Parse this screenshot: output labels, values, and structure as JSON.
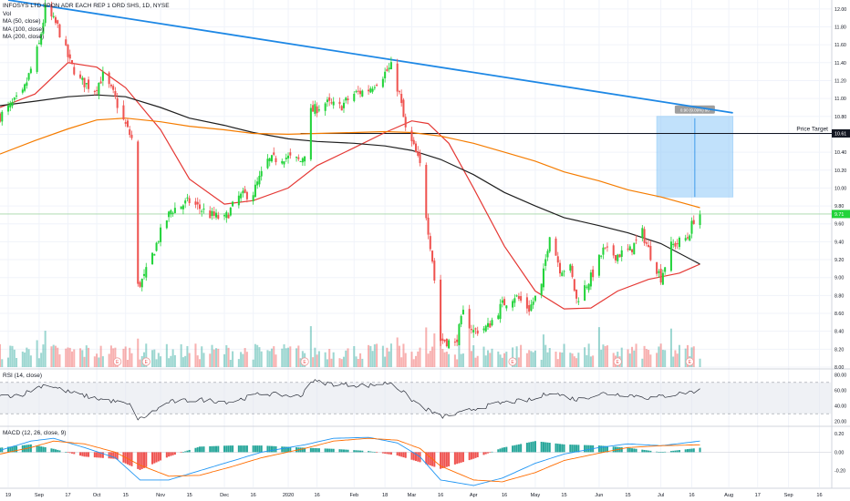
{
  "symbol_line": "INFOSYS LTD SPON ADR EACH REP 1 ORD SHS, 1D, NYSE",
  "legend_lines": [
    "Vol",
    "MA (50, close)",
    "MA (100, close)",
    "MA (200, close)"
  ],
  "rsi_label": "RSI (14, close)",
  "macd_label": "MACD (12, 26, close, 9)",
  "colors": {
    "up": "#26a69a",
    "up_bright": "#22d33a",
    "down": "#ef5350",
    "ma50": "#e53935",
    "ma100": "#1f1f1f",
    "ma200": "#f57c00",
    "trendline": "#1e88e5",
    "target_box": "#90caf9",
    "rsi_band": "#9598a1",
    "macd_line": "#2196f3",
    "signal_line": "#ff6d00",
    "hist_up": "#26a69a",
    "hist_down": "#ef5350"
  },
  "annotations": {
    "price_target_label": "Price Target",
    "price_target_value": "10.61",
    "current_price_tag": "9.71",
    "measure_label": "0.90 (9.09%) 90",
    "price_target_level": 10.61,
    "current_price_level": 9.71,
    "target_box": {
      "from_date": "2020-06-29",
      "to_date": "2020-08-05",
      "low": 9.9,
      "high": 10.8
    },
    "trendline": {
      "start": {
        "date": "2019-08-19",
        "price": 12.1
      },
      "end": {
        "date": "2020-08-05",
        "price": 10.84
      }
    },
    "earnings_markers_main": [
      "2019-10-11",
      "2019-10-25",
      "2020-01-10",
      "2020-04-20",
      "2020-06-10",
      "2020-07-15"
    ],
    "earnings_symbol": "E",
    "dividend_symbol": "D"
  },
  "chart_data": {
    "type": "candlestick",
    "axes": {
      "x_ticks": [
        "19",
        "Sep",
        "17",
        "Oct",
        "15",
        "Nov",
        "15",
        "Dec",
        "16",
        "2020",
        "16",
        "Feb",
        "18",
        "Mar",
        "16",
        "Apr",
        "16",
        "May",
        "15",
        "Jun",
        "15",
        "Jul",
        "16",
        "Aug",
        "17",
        "Sep",
        "16"
      ],
      "x_tick_dates": [
        "2019-08-19",
        "2019-09-03",
        "2019-09-17",
        "2019-10-01",
        "2019-10-15",
        "2019-11-01",
        "2019-11-15",
        "2019-12-02",
        "2019-12-16",
        "2020-01-02",
        "2020-01-16",
        "2020-02-03",
        "2020-02-18",
        "2020-03-02",
        "2020-03-16",
        "2020-04-01",
        "2020-04-16",
        "2020-05-01",
        "2020-05-15",
        "2020-06-01",
        "2020-06-15",
        "2020-07-01",
        "2020-07-16",
        "2020-08-03",
        "2020-08-17",
        "2020-09-01",
        "2020-09-16"
      ],
      "x_range": [
        "2019-08-15",
        "2020-09-22"
      ],
      "price_ticks": [
        "12.00",
        "11.80",
        "11.60",
        "11.40",
        "11.20",
        "11.00",
        "10.80",
        "10.60",
        "10.40",
        "10.20",
        "10.00",
        "9.80",
        "9.60",
        "9.40",
        "9.20",
        "9.00",
        "8.80",
        "8.60",
        "8.40",
        "8.20",
        "8.00"
      ],
      "price_range": [
        8.0,
        12.1
      ],
      "rsi_ticks": [
        "80.00",
        "60.00",
        "40.00",
        "20.00"
      ],
      "rsi_range": [
        15,
        85
      ],
      "rsi_band": [
        30,
        70
      ],
      "macd_ticks": [
        "0.20",
        "0.00",
        "-0.20"
      ],
      "macd_range": [
        -0.38,
        0.26
      ],
      "volume_max": 1.0
    },
    "price_anchors": [
      [
        "2019-08-15",
        10.8
      ],
      [
        "2019-08-26",
        11.05
      ],
      [
        "2019-09-03",
        11.6
      ],
      [
        "2019-09-06",
        12.0
      ],
      [
        "2019-09-12",
        11.8
      ],
      [
        "2019-09-18",
        11.4
      ],
      [
        "2019-09-23",
        11.2
      ],
      [
        "2019-09-30",
        11.1
      ],
      [
        "2019-10-04",
        11.25
      ],
      [
        "2019-10-09",
        11.05
      ],
      [
        "2019-10-14",
        10.75
      ],
      [
        "2019-10-18",
        10.55
      ],
      [
        "2019-10-21",
        8.9
      ],
      [
        "2019-10-24",
        9.0
      ],
      [
        "2019-11-01",
        9.5
      ],
      [
        "2019-11-06",
        9.75
      ],
      [
        "2019-11-15",
        9.85
      ],
      [
        "2019-11-25",
        9.7
      ],
      [
        "2019-12-02",
        9.65
      ],
      [
        "2019-12-09",
        9.9
      ],
      [
        "2019-12-16",
        9.95
      ],
      [
        "2019-12-23",
        10.3
      ],
      [
        "2019-12-31",
        10.35
      ],
      [
        "2020-01-08",
        10.3
      ],
      [
        "2020-01-10",
        10.4
      ],
      [
        "2020-01-13",
        10.85
      ],
      [
        "2020-01-20",
        10.95
      ],
      [
        "2020-01-27",
        10.9
      ],
      [
        "2020-02-03",
        11.05
      ],
      [
        "2020-02-10",
        11.1
      ],
      [
        "2020-02-14",
        11.2
      ],
      [
        "2020-02-21",
        11.35
      ],
      [
        "2020-02-25",
        11.05
      ],
      [
        "2020-02-28",
        10.65
      ],
      [
        "2020-03-03",
        10.45
      ],
      [
        "2020-03-06",
        10.25
      ],
      [
        "2020-03-09",
        9.7
      ],
      [
        "2020-03-12",
        9.2
      ],
      [
        "2020-03-16",
        8.3
      ],
      [
        "2020-03-18",
        8.3
      ],
      [
        "2020-03-23",
        8.25
      ],
      [
        "2020-03-27",
        8.6
      ],
      [
        "2020-04-01",
        8.4
      ],
      [
        "2020-04-08",
        8.45
      ],
      [
        "2020-04-15",
        8.7
      ],
      [
        "2020-04-21",
        8.8
      ],
      [
        "2020-04-28",
        8.65
      ],
      [
        "2020-05-04",
        8.9
      ],
      [
        "2020-05-08",
        9.5
      ],
      [
        "2020-05-13",
        9.1
      ],
      [
        "2020-05-18",
        9.1
      ],
      [
        "2020-05-21",
        8.75
      ],
      [
        "2020-05-28",
        9.0
      ],
      [
        "2020-06-03",
        9.3
      ],
      [
        "2020-06-09",
        9.25
      ],
      [
        "2020-06-16",
        9.3
      ],
      [
        "2020-06-22",
        9.5
      ],
      [
        "2020-06-26",
        9.25
      ],
      [
        "2020-07-01",
        9.0
      ],
      [
        "2020-07-06",
        9.35
      ],
      [
        "2020-07-10",
        9.4
      ],
      [
        "2020-07-14",
        9.45
      ],
      [
        "2020-07-17",
        9.65
      ],
      [
        "2020-07-20",
        9.71
      ]
    ],
    "series": [
      {
        "name": "MA (50, close)",
        "points": [
          [
            "2019-08-15",
            10.9
          ],
          [
            "2019-09-01",
            11.05
          ],
          [
            "2019-09-17",
            11.4
          ],
          [
            "2019-10-01",
            11.35
          ],
          [
            "2019-10-15",
            11.12
          ],
          [
            "2019-11-01",
            10.65
          ],
          [
            "2019-11-15",
            10.1
          ],
          [
            "2019-12-02",
            9.82
          ],
          [
            "2019-12-16",
            9.86
          ],
          [
            "2020-01-02",
            10.0
          ],
          [
            "2020-01-16",
            10.25
          ],
          [
            "2020-02-03",
            10.45
          ],
          [
            "2020-02-18",
            10.62
          ],
          [
            "2020-03-02",
            10.75
          ],
          [
            "2020-03-10",
            10.72
          ],
          [
            "2020-03-20",
            10.5
          ],
          [
            "2020-04-01",
            10.0
          ],
          [
            "2020-04-16",
            9.35
          ],
          [
            "2020-05-01",
            8.85
          ],
          [
            "2020-05-15",
            8.65
          ],
          [
            "2020-05-28",
            8.66
          ],
          [
            "2020-06-10",
            8.85
          ],
          [
            "2020-06-25",
            8.98
          ],
          [
            "2020-07-10",
            9.05
          ],
          [
            "2020-07-20",
            9.15
          ]
        ]
      },
      {
        "name": "MA (100, close)",
        "points": [
          [
            "2019-08-15",
            10.92
          ],
          [
            "2019-09-01",
            10.97
          ],
          [
            "2019-09-17",
            11.02
          ],
          [
            "2019-10-01",
            11.04
          ],
          [
            "2019-10-15",
            11.02
          ],
          [
            "2019-11-01",
            10.9
          ],
          [
            "2019-11-15",
            10.78
          ],
          [
            "2019-12-02",
            10.7
          ],
          [
            "2019-12-16",
            10.62
          ],
          [
            "2020-01-02",
            10.55
          ],
          [
            "2020-01-16",
            10.52
          ],
          [
            "2020-02-03",
            10.5
          ],
          [
            "2020-02-18",
            10.47
          ],
          [
            "2020-03-02",
            10.42
          ],
          [
            "2020-03-16",
            10.32
          ],
          [
            "2020-04-01",
            10.15
          ],
          [
            "2020-04-16",
            9.95
          ],
          [
            "2020-05-01",
            9.8
          ],
          [
            "2020-05-15",
            9.67
          ],
          [
            "2020-06-01",
            9.58
          ],
          [
            "2020-06-15",
            9.5
          ],
          [
            "2020-07-01",
            9.38
          ],
          [
            "2020-07-20",
            9.15
          ]
        ]
      },
      {
        "name": "MA (200, close)",
        "points": [
          [
            "2019-08-15",
            10.38
          ],
          [
            "2019-09-01",
            10.53
          ],
          [
            "2019-09-17",
            10.66
          ],
          [
            "2019-10-01",
            10.76
          ],
          [
            "2019-10-15",
            10.78
          ],
          [
            "2019-11-01",
            10.74
          ],
          [
            "2019-11-15",
            10.69
          ],
          [
            "2019-12-02",
            10.65
          ],
          [
            "2019-12-16",
            10.61
          ],
          [
            "2020-01-02",
            10.6
          ],
          [
            "2020-01-16",
            10.61
          ],
          [
            "2020-02-03",
            10.62
          ],
          [
            "2020-02-18",
            10.63
          ],
          [
            "2020-03-02",
            10.62
          ],
          [
            "2020-03-16",
            10.58
          ],
          [
            "2020-04-01",
            10.5
          ],
          [
            "2020-04-16",
            10.4
          ],
          [
            "2020-05-01",
            10.3
          ],
          [
            "2020-05-15",
            10.18
          ],
          [
            "2020-06-01",
            10.08
          ],
          [
            "2020-06-15",
            9.98
          ],
          [
            "2020-07-01",
            9.9
          ],
          [
            "2020-07-20",
            9.78
          ]
        ]
      }
    ],
    "rsi_anchors": [
      [
        "2019-08-15",
        52
      ],
      [
        "2019-08-26",
        55
      ],
      [
        "2019-09-06",
        68
      ],
      [
        "2019-09-17",
        58
      ],
      [
        "2019-09-30",
        50
      ],
      [
        "2019-10-11",
        45
      ],
      [
        "2019-10-18",
        40
      ],
      [
        "2019-10-21",
        22
      ],
      [
        "2019-10-25",
        27
      ],
      [
        "2019-11-05",
        45
      ],
      [
        "2019-11-20",
        48
      ],
      [
        "2019-12-05",
        45
      ],
      [
        "2019-12-20",
        56
      ],
      [
        "2020-01-08",
        52
      ],
      [
        "2020-01-13",
        72
      ],
      [
        "2020-01-24",
        68
      ],
      [
        "2020-02-10",
        66
      ],
      [
        "2020-02-21",
        70
      ],
      [
        "2020-03-02",
        48
      ],
      [
        "2020-03-09",
        36
      ],
      [
        "2020-03-16",
        26
      ],
      [
        "2020-03-25",
        30
      ],
      [
        "2020-04-01",
        36
      ],
      [
        "2020-04-15",
        44
      ],
      [
        "2020-05-01",
        48
      ],
      [
        "2020-05-08",
        58
      ],
      [
        "2020-05-21",
        48
      ],
      [
        "2020-06-03",
        56
      ],
      [
        "2020-06-16",
        54
      ],
      [
        "2020-06-26",
        50
      ],
      [
        "2020-07-06",
        54
      ],
      [
        "2020-07-20",
        60
      ]
    ],
    "macd_anchors": [
      [
        "2019-08-15",
        0.02,
        -0.02
      ],
      [
        "2019-08-30",
        0.12,
        0.05
      ],
      [
        "2019-09-10",
        0.15,
        0.12
      ],
      [
        "2019-09-25",
        0.05,
        0.09
      ],
      [
        "2019-10-10",
        -0.06,
        0.0
      ],
      [
        "2019-10-22",
        -0.3,
        -0.14
      ],
      [
        "2019-11-05",
        -0.3,
        -0.26
      ],
      [
        "2019-11-20",
        -0.2,
        -0.25
      ],
      [
        "2019-12-05",
        -0.1,
        -0.16
      ],
      [
        "2019-12-20",
        0.0,
        -0.06
      ],
      [
        "2020-01-10",
        0.08,
        0.04
      ],
      [
        "2020-01-24",
        0.15,
        0.12
      ],
      [
        "2020-02-10",
        0.16,
        0.15
      ],
      [
        "2020-02-24",
        0.1,
        0.13
      ],
      [
        "2020-03-06",
        -0.05,
        0.04
      ],
      [
        "2020-03-16",
        -0.3,
        -0.15
      ],
      [
        "2020-04-01",
        -0.36,
        -0.3
      ],
      [
        "2020-04-15",
        -0.28,
        -0.32
      ],
      [
        "2020-05-01",
        -0.12,
        -0.22
      ],
      [
        "2020-05-15",
        -0.02,
        -0.09
      ],
      [
        "2020-06-01",
        0.05,
        -0.01
      ],
      [
        "2020-06-15",
        0.09,
        0.05
      ],
      [
        "2020-07-01",
        0.07,
        0.07
      ],
      [
        "2020-07-20",
        0.12,
        0.08
      ]
    ]
  }
}
